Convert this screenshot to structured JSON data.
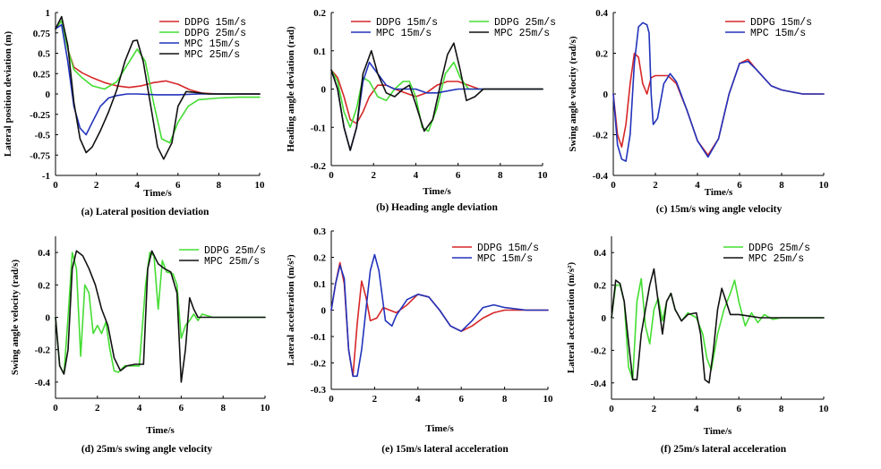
{
  "colors": {
    "DDPG 15m/s": "#d62728",
    "DDPG 25m/s": "#44dd33",
    "MPC 15m/s": "#2233bb",
    "MPC 25m/s": "#111111"
  },
  "chart_data": [
    {
      "type": "line",
      "caption": "(a) Lateral position deviation",
      "xlabel": "Time/s",
      "ylabel": "Lateral position deviation (m)",
      "xlim": [
        0,
        10
      ],
      "ylim": [
        -1,
        1
      ],
      "xticks": [
        "0",
        "2",
        "4",
        "6",
        "8",
        "10"
      ],
      "yticks": [
        "1",
        "0.75",
        "0.5",
        "0.25",
        "0",
        "-0.25",
        "-0.5",
        "-0.75",
        "-1"
      ],
      "legend_position": "top-right",
      "series": [
        {
          "name": "DDPG 15m/s",
          "x": [
            0,
            0.3,
            0.6,
            0.9,
            1.3,
            1.8,
            2.4,
            3.0,
            3.6,
            4.2,
            4.8,
            5.4,
            6.0,
            6.6,
            7.2,
            8,
            9,
            10
          ],
          "y": [
            0.8,
            0.9,
            0.55,
            0.33,
            0.26,
            0.2,
            0.14,
            0.1,
            0.08,
            0.1,
            0.14,
            0.16,
            0.12,
            0.05,
            0.01,
            0,
            0,
            0
          ]
        },
        {
          "name": "DDPG 25m/s",
          "x": [
            0,
            0.3,
            0.6,
            0.9,
            1.3,
            1.8,
            2.4,
            3.0,
            3.5,
            4.0,
            4.4,
            4.8,
            5.2,
            5.6,
            6.0,
            6.5,
            7.0,
            8,
            9,
            10
          ],
          "y": [
            0.8,
            0.9,
            0.55,
            0.3,
            0.2,
            0.1,
            0.06,
            0.15,
            0.35,
            0.55,
            0.4,
            -0.1,
            -0.55,
            -0.6,
            -0.35,
            -0.15,
            -0.07,
            -0.05,
            -0.04,
            -0.04
          ]
        },
        {
          "name": "MPC 15m/s",
          "x": [
            0,
            0.3,
            0.6,
            0.9,
            1.2,
            1.5,
            1.8,
            2.2,
            2.6,
            3.0,
            3.5,
            4,
            5,
            6,
            7,
            8,
            9,
            10
          ],
          "y": [
            0.8,
            0.85,
            0.4,
            -0.15,
            -0.42,
            -0.5,
            -0.35,
            -0.15,
            -0.05,
            -0.02,
            0,
            0,
            -0.01,
            -0.01,
            0,
            0,
            0,
            0
          ]
        },
        {
          "name": "MPC 25m/s",
          "x": [
            0,
            0.3,
            0.6,
            0.9,
            1.2,
            1.5,
            1.8,
            2.2,
            2.6,
            3.0,
            3.4,
            3.8,
            4.0,
            4.3,
            4.7,
            5.0,
            5.3,
            5.7,
            6.0,
            6.4,
            6.8,
            7.5,
            8,
            9,
            10
          ],
          "y": [
            0.8,
            0.95,
            0.6,
            -0.1,
            -0.55,
            -0.72,
            -0.65,
            -0.45,
            -0.22,
            0.05,
            0.4,
            0.65,
            0.66,
            0.4,
            -0.2,
            -0.65,
            -0.8,
            -0.6,
            -0.15,
            0.03,
            0.02,
            0,
            0,
            0,
            0
          ]
        }
      ]
    },
    {
      "type": "line",
      "caption": "(b) Heading angle deviation",
      "xlabel": "Time/s",
      "ylabel": "Heading angle deviation (rad)",
      "xlim": [
        0,
        10
      ],
      "ylim": [
        -0.2,
        0.2
      ],
      "xticks": [
        "0",
        "2",
        "4",
        "6",
        "8",
        "10"
      ],
      "yticks": [
        "0.2",
        "0.1",
        "0",
        "-0.1",
        "-0.2"
      ],
      "legend_position": "top-right",
      "series": [
        {
          "name": "DDPG 15m/s",
          "x": [
            0,
            0.3,
            0.6,
            0.9,
            1.2,
            1.5,
            1.8,
            2.2,
            2.6,
            3.0,
            3.5,
            4.0,
            4.5,
            5.0,
            5.5,
            6.0,
            6.5,
            7,
            8,
            9,
            10
          ],
          "y": [
            0.05,
            0.03,
            -0.02,
            -0.08,
            -0.09,
            -0.06,
            -0.02,
            0.01,
            0.01,
            0,
            -0.01,
            -0.02,
            -0.01,
            0.01,
            0.02,
            0.02,
            0.01,
            0,
            0,
            0,
            0
          ]
        },
        {
          "name": "DDPG 25m/s",
          "x": [
            0,
            0.3,
            0.6,
            0.9,
            1.2,
            1.5,
            1.8,
            2.2,
            2.6,
            3.0,
            3.4,
            3.7,
            4.0,
            4.3,
            4.6,
            5.0,
            5.4,
            5.8,
            6.1,
            6.5,
            7,
            8,
            9,
            10
          ],
          "y": [
            0.05,
            0.02,
            -0.06,
            -0.1,
            -0.05,
            0.03,
            0.02,
            -0.02,
            -0.03,
            0,
            0.02,
            0.02,
            -0.02,
            -0.1,
            -0.11,
            -0.05,
            0.04,
            0.07,
            0.03,
            0,
            0,
            0,
            0,
            0
          ]
        },
        {
          "name": "MPC 15m/s",
          "x": [
            0,
            0.3,
            0.6,
            0.9,
            1.2,
            1.5,
            1.8,
            2.2,
            2.6,
            3.0,
            3.5,
            4,
            4.5,
            5,
            6,
            7,
            8,
            9,
            10
          ],
          "y": [
            0.05,
            0,
            -0.1,
            -0.16,
            -0.1,
            0.02,
            0.07,
            0.04,
            0.01,
            0,
            0,
            0,
            -0.01,
            -0.01,
            0,
            0,
            0,
            0,
            0
          ]
        },
        {
          "name": "MPC 25m/s",
          "x": [
            0,
            0.3,
            0.6,
            0.9,
            1.2,
            1.5,
            1.9,
            2.2,
            2.6,
            3.0,
            3.4,
            3.7,
            4.0,
            4.4,
            4.8,
            5.2,
            5.5,
            5.8,
            6.1,
            6.4,
            6.8,
            7.2,
            8,
            9,
            10
          ],
          "y": [
            0.05,
            0,
            -0.1,
            -0.16,
            -0.1,
            0.04,
            0.1,
            0.04,
            -0.01,
            -0.02,
            0,
            0.01,
            -0.04,
            -0.11,
            -0.08,
            0.02,
            0.09,
            0.12,
            0.05,
            -0.03,
            -0.02,
            0,
            0,
            0,
            0
          ]
        }
      ]
    },
    {
      "type": "line",
      "caption": "(c) 15m/s wing angle velocity",
      "xlabel": "Time/s",
      "ylabel": "Swing angle velocity (rad/s)",
      "xlim": [
        0,
        10
      ],
      "ylim": [
        -0.4,
        0.4
      ],
      "xticks": [
        "0",
        "2",
        "4",
        "6",
        "8",
        "10"
      ],
      "yticks": [
        "0.4",
        "0.2",
        "0",
        "-0.2",
        "-0.4"
      ],
      "legend_position": "top-right",
      "series": [
        {
          "name": "DDPG 15m/s",
          "x": [
            0,
            0.2,
            0.4,
            0.6,
            0.8,
            1.0,
            1.2,
            1.4,
            1.6,
            1.8,
            2.0,
            2.3,
            2.6,
            3.0,
            3.5,
            4.0,
            4.5,
            5.0,
            5.5,
            6.0,
            6.4,
            6.8,
            7.5,
            8,
            9,
            10
          ],
          "y": [
            0,
            -0.2,
            -0.26,
            -0.15,
            0.05,
            0.2,
            0.18,
            0.05,
            0,
            0.08,
            0.09,
            0.09,
            0.09,
            0.05,
            -0.08,
            -0.23,
            -0.3,
            -0.22,
            0,
            0.15,
            0.17,
            0.12,
            0.04,
            0.02,
            0,
            0
          ]
        },
        {
          "name": "MPC 15m/s",
          "x": [
            0,
            0.2,
            0.4,
            0.6,
            0.8,
            1.0,
            1.2,
            1.4,
            1.6,
            1.7,
            1.8,
            1.9,
            2.1,
            2.4,
            2.7,
            3.0,
            3.5,
            4.0,
            4.5,
            5.0,
            5.5,
            6.0,
            6.4,
            6.8,
            7.5,
            8,
            9,
            10
          ],
          "y": [
            0,
            -0.25,
            -0.32,
            -0.33,
            -0.2,
            0.15,
            0.33,
            0.35,
            0.34,
            0.3,
            0,
            -0.15,
            -0.12,
            0.05,
            0.1,
            0.06,
            -0.08,
            -0.23,
            -0.31,
            -0.22,
            0,
            0.15,
            0.16,
            0.12,
            0.04,
            0.02,
            0,
            0
          ]
        }
      ]
    },
    {
      "type": "line",
      "caption": "(d) 25m/s swing angle velocity",
      "xlabel": "Time/s",
      "ylabel": "Swing angle velocity (rad/s)",
      "xlim": [
        0,
        10
      ],
      "ylim": [
        -0.5,
        0.5
      ],
      "xticks": [
        "0",
        "2",
        "4",
        "6",
        "8",
        "10"
      ],
      "yticks": [
        "0.4",
        "0.2",
        "0",
        "-0.2",
        "-0.4"
      ],
      "legend_position": "top-right",
      "series": [
        {
          "name": "DDPG 25m/s",
          "x": [
            0,
            0.2,
            0.4,
            0.6,
            0.8,
            1.0,
            1.2,
            1.4,
            1.6,
            1.8,
            2.0,
            2.2,
            2.4,
            2.6,
            2.8,
            3.0,
            3.3,
            3.6,
            4.0,
            4.3,
            4.5,
            4.7,
            4.9,
            5.1,
            5.3,
            5.6,
            5.8,
            6.0,
            6.2,
            6.4,
            6.6,
            6.8,
            7.0,
            7.5,
            8,
            9,
            10
          ],
          "y": [
            0,
            -0.3,
            -0.35,
            0,
            0.4,
            0.3,
            -0.24,
            0.2,
            0.15,
            -0.1,
            -0.05,
            -0.1,
            -0.03,
            -0.2,
            -0.33,
            -0.34,
            -0.3,
            -0.3,
            -0.3,
            0.2,
            0.4,
            0.38,
            0.05,
            0.35,
            0.28,
            0.27,
            0.2,
            -0.13,
            -0.05,
            -0.02,
            0.02,
            -0.02,
            0.02,
            0,
            0,
            0,
            0
          ]
        },
        {
          "name": "MPC 25m/s",
          "x": [
            0,
            0.2,
            0.4,
            0.6,
            0.8,
            1.0,
            1.3,
            1.6,
            1.9,
            2.2,
            2.5,
            2.8,
            3.1,
            3.4,
            3.8,
            4.2,
            4.4,
            4.6,
            4.9,
            5.2,
            5.5,
            5.8,
            6.0,
            6.2,
            6.4,
            6.6,
            6.8,
            7.0,
            7.5,
            8,
            9,
            10
          ],
          "y": [
            0,
            -0.3,
            -0.35,
            -0.2,
            0.3,
            0.41,
            0.38,
            0.3,
            0.2,
            0.05,
            -0.05,
            -0.25,
            -0.33,
            -0.3,
            -0.29,
            -0.29,
            0.3,
            0.41,
            0.33,
            0.3,
            0.28,
            0.15,
            -0.4,
            -0.2,
            0.12,
            0.05,
            0,
            0,
            0,
            0,
            0,
            0
          ]
        }
      ]
    },
    {
      "type": "line",
      "caption": "(e) 15m/s lateral acceleration",
      "xlabel": "Time/s",
      "ylabel": "Lateral acceleration (m/s²)",
      "xlim": [
        0,
        10
      ],
      "ylim": [
        -0.3,
        0.3
      ],
      "xticks": [
        "0",
        "2",
        "4",
        "6",
        "8",
        "10"
      ],
      "yticks": [
        "0.3",
        "0.2",
        "0.1",
        "0",
        "-0.1",
        "-0.2",
        "-0.3"
      ],
      "legend_position": "top-right",
      "series": [
        {
          "name": "DDPG 15m/s",
          "x": [
            0,
            0.2,
            0.4,
            0.6,
            0.8,
            1.0,
            1.2,
            1.4,
            1.6,
            1.8,
            2.1,
            2.4,
            2.7,
            3.0,
            3.5,
            4.0,
            4.5,
            5.0,
            5.5,
            6.0,
            6.5,
            7.0,
            7.5,
            8,
            9,
            10
          ],
          "y": [
            0,
            0.1,
            0.18,
            0.1,
            -0.15,
            -0.25,
            -0.05,
            0.11,
            0.05,
            -0.04,
            -0.03,
            0.01,
            0,
            -0.01,
            0.02,
            0.06,
            0.05,
            0,
            -0.06,
            -0.08,
            -0.06,
            -0.03,
            -0.01,
            0,
            0,
            0
          ]
        },
        {
          "name": "MPC 15m/s",
          "x": [
            0,
            0.2,
            0.4,
            0.6,
            0.8,
            1.0,
            1.2,
            1.4,
            1.6,
            1.8,
            2.0,
            2.2,
            2.5,
            2.8,
            3.0,
            3.5,
            4.0,
            4.5,
            5.0,
            5.5,
            6.0,
            6.5,
            7.0,
            7.5,
            8,
            9,
            10
          ],
          "y": [
            0,
            0.1,
            0.17,
            0.12,
            -0.15,
            -0.25,
            -0.25,
            -0.15,
            0,
            0.15,
            0.21,
            0.15,
            -0.04,
            -0.06,
            -0.02,
            0.04,
            0.06,
            0.05,
            0,
            -0.06,
            -0.08,
            -0.04,
            0.01,
            0.02,
            0.01,
            0,
            0
          ]
        }
      ]
    },
    {
      "type": "line",
      "caption": "(f) 25m/s lateral acceleration",
      "xlabel": "Time/s",
      "ylabel": "Lateral acceleration (m/s²)",
      "xlim": [
        0,
        10
      ],
      "ylim": [
        -0.5,
        0.5
      ],
      "xticks": [
        "0",
        "2",
        "4",
        "6",
        "8",
        "10"
      ],
      "yticks": [
        "0.4",
        "0.2",
        "0",
        "-0.2",
        "-0.4"
      ],
      "legend_position": "top-right",
      "series": [
        {
          "name": "DDPG 25m/s",
          "x": [
            0,
            0.2,
            0.4,
            0.6,
            0.8,
            1.0,
            1.2,
            1.4,
            1.6,
            1.8,
            2.0,
            2.2,
            2.4,
            2.6,
            2.8,
            3.0,
            3.3,
            3.6,
            4.0,
            4.3,
            4.5,
            4.7,
            5.0,
            5.3,
            5.6,
            5.8,
            6.0,
            6.3,
            6.6,
            6.9,
            7.2,
            7.6,
            8,
            8.5,
            9,
            10
          ],
          "y": [
            0,
            0.2,
            0.2,
            0.1,
            -0.3,
            -0.38,
            0.1,
            0.24,
            -0.05,
            -0.16,
            0.05,
            0.12,
            -0.02,
            0.1,
            0.15,
            0.05,
            -0.02,
            0.03,
            0,
            -0.1,
            -0.25,
            -0.32,
            -0.1,
            0.05,
            0.15,
            0.23,
            0.1,
            -0.05,
            0.03,
            -0.03,
            0.02,
            -0.01,
            0,
            0,
            0,
            0
          ]
        },
        {
          "name": "MPC 25m/s",
          "x": [
            0,
            0.2,
            0.4,
            0.6,
            0.8,
            1.0,
            1.2,
            1.4,
            1.6,
            1.8,
            2.0,
            2.2,
            2.4,
            2.6,
            2.8,
            3.0,
            3.3,
            3.6,
            4.0,
            4.2,
            4.4,
            4.6,
            4.8,
            5.0,
            5.2,
            5.4,
            5.6,
            6.0,
            6.5,
            7,
            8,
            9,
            10
          ],
          "y": [
            0,
            0.23,
            0.21,
            0.1,
            -0.15,
            -0.38,
            -0.38,
            -0.1,
            0.05,
            0.2,
            0.3,
            0.1,
            -0.1,
            0.1,
            0.15,
            0.05,
            -0.02,
            0.02,
            0.03,
            -0.1,
            -0.38,
            -0.4,
            -0.2,
            0.05,
            0.18,
            0.1,
            0.02,
            0.02,
            0.01,
            0,
            0,
            0,
            0
          ]
        }
      ]
    }
  ]
}
